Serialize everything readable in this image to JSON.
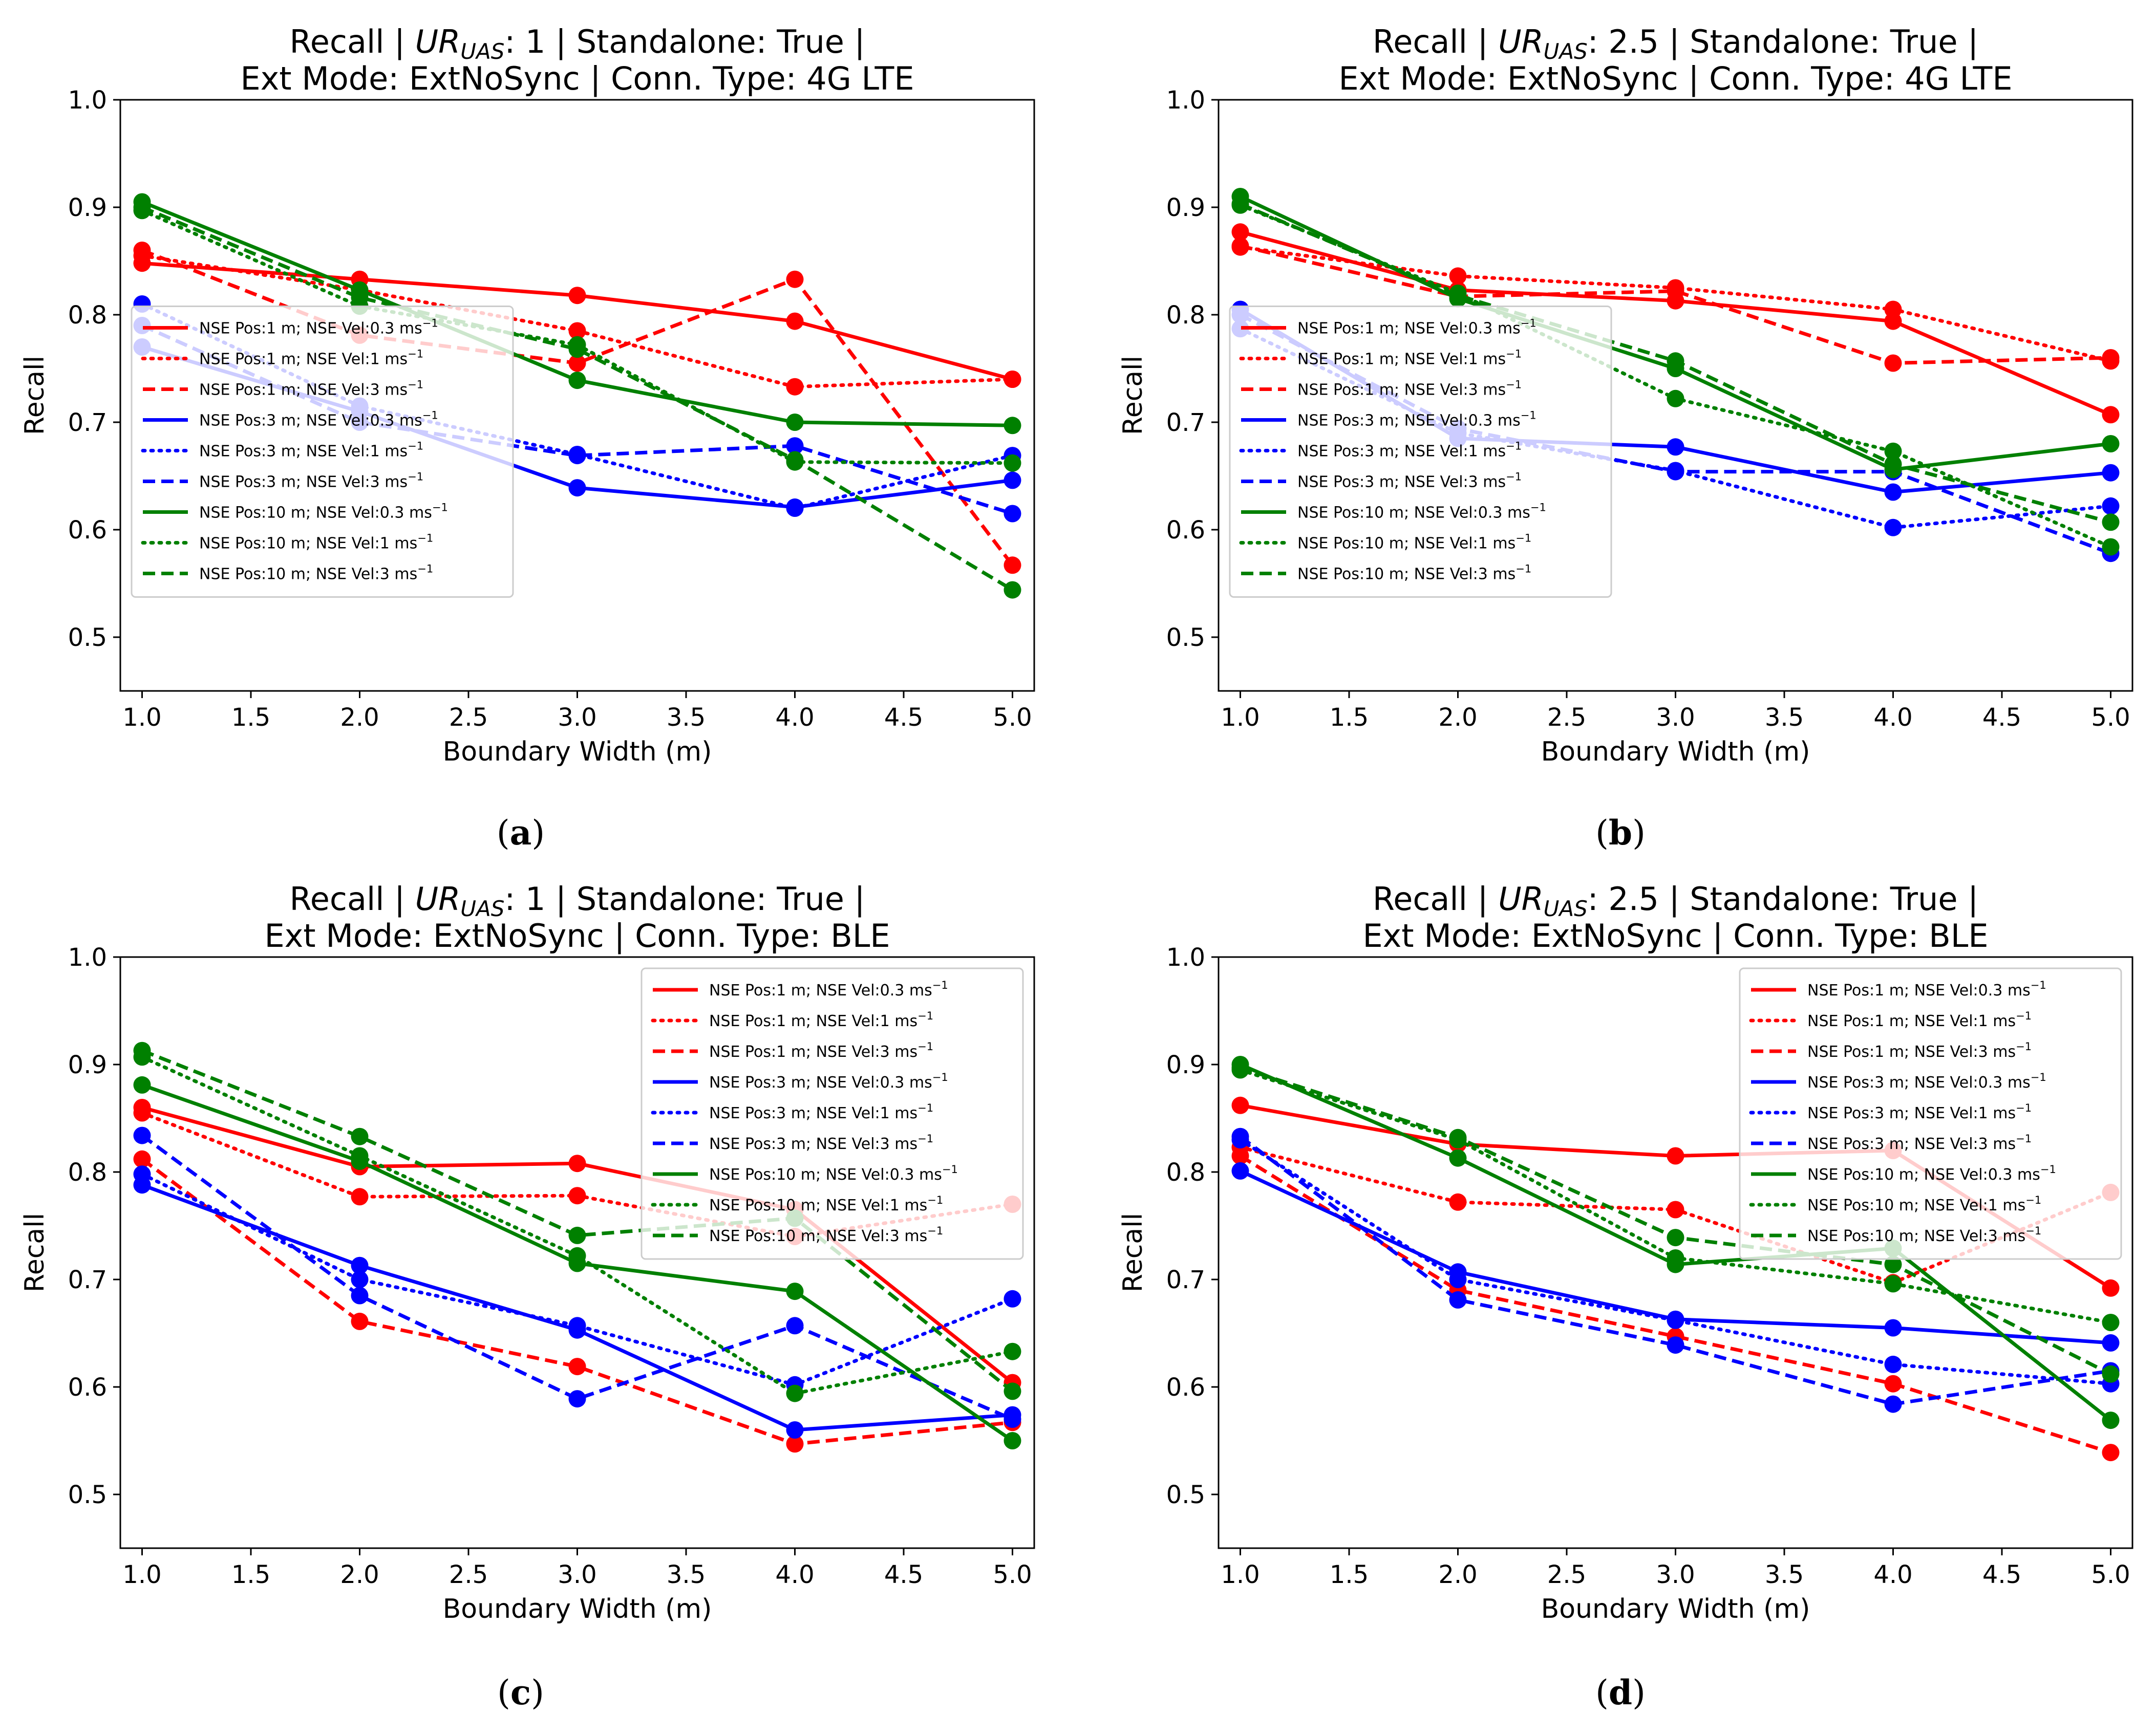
{
  "chart_data": [
    {
      "type": "line",
      "panel": "a",
      "caption": "a",
      "title_line1_parts": [
        "Recall | ",
        "UR",
        "UAS",
        ": 1 | Standalone: True |"
      ],
      "title_line2": "Ext Mode: ExtNoSync | Conn. Type: 4G LTE",
      "xlabel": "Boundary  Width (m)",
      "ylabel": "Recall",
      "xlim": [
        0.9,
        5.1
      ],
      "ylim": [
        0.45,
        1.0
      ],
      "xticks": [
        "1.0",
        "1.5",
        "2.0",
        "2.5",
        "3.0",
        "3.5",
        "4.0",
        "4.5",
        "5.0"
      ],
      "yticks": [
        "0.5",
        "0.6",
        "0.7",
        "0.8",
        "0.9",
        "1.0"
      ],
      "legend_position": "center-left",
      "x": [
        1,
        2,
        3,
        4,
        5
      ],
      "series": [
        {
          "name": "NSE Pos:1 m; NSE Vel:0.3 ms",
          "color": "#ff0000",
          "style": "solid",
          "values": [
            0.848,
            0.833,
            0.818,
            0.794,
            0.74
          ]
        },
        {
          "name": "NSE Pos:1 m; NSE Vel:1 ms",
          "color": "#ff0000",
          "style": "dotted",
          "values": [
            0.855,
            0.823,
            0.785,
            0.733,
            0.74
          ]
        },
        {
          "name": "NSE Pos:1 m; NSE Vel:3 ms",
          "color": "#ff0000",
          "style": "dashed",
          "values": [
            0.86,
            0.781,
            0.755,
            0.833,
            0.567
          ]
        },
        {
          "name": "NSE Pos:3 m; NSE Vel:0.3 ms",
          "color": "#0000ff",
          "style": "solid",
          "values": [
            0.77,
            0.71,
            0.639,
            0.621,
            0.646
          ]
        },
        {
          "name": "NSE Pos:3 m; NSE Vel:1 ms",
          "color": "#0000ff",
          "style": "dotted",
          "values": [
            0.81,
            0.715,
            0.67,
            0.62,
            0.669
          ]
        },
        {
          "name": "NSE Pos:3 m; NSE Vel:3 ms",
          "color": "#0000ff",
          "style": "dashed",
          "values": [
            0.79,
            0.7,
            0.669,
            0.678,
            0.615
          ]
        },
        {
          "name": "NSE Pos:10 m; NSE Vel:0.3 ms",
          "color": "#008000",
          "style": "solid",
          "values": [
            0.905,
            0.823,
            0.739,
            0.7,
            0.697
          ]
        },
        {
          "name": "NSE Pos:10 m; NSE Vel:1 ms",
          "color": "#008000",
          "style": "dotted",
          "values": [
            0.897,
            0.808,
            0.772,
            0.663,
            0.662
          ]
        },
        {
          "name": "NSE Pos:10 m; NSE Vel:3 ms",
          "color": "#008000",
          "style": "dashed",
          "values": [
            0.9,
            0.816,
            0.768,
            0.665,
            0.544
          ]
        }
      ]
    },
    {
      "type": "line",
      "panel": "b",
      "caption": "b",
      "title_line1_parts": [
        "Recall | ",
        "UR",
        "UAS",
        ": 2.5 | Standalone: True |"
      ],
      "title_line2": "Ext Mode: ExtNoSync | Conn. Type: 4G LTE",
      "xlabel": "Boundary  Width (m)",
      "ylabel": "Recall",
      "xlim": [
        0.9,
        5.1
      ],
      "ylim": [
        0.45,
        1.0
      ],
      "xticks": [
        "1.0",
        "1.5",
        "2.0",
        "2.5",
        "3.0",
        "3.5",
        "4.0",
        "4.5",
        "5.0"
      ],
      "yticks": [
        "0.5",
        "0.6",
        "0.7",
        "0.8",
        "0.9",
        "1.0"
      ],
      "legend_position": "center-left",
      "x": [
        1,
        2,
        3,
        4,
        5
      ],
      "series": [
        {
          "name": "NSE Pos:1 m; NSE Vel:0.3 ms",
          "color": "#ff0000",
          "style": "solid",
          "values": [
            0.877,
            0.823,
            0.813,
            0.794,
            0.707
          ]
        },
        {
          "name": "NSE Pos:1 m; NSE Vel:1 ms",
          "color": "#ff0000",
          "style": "dotted",
          "values": [
            0.863,
            0.836,
            0.825,
            0.805,
            0.757
          ]
        },
        {
          "name": "NSE Pos:1 m; NSE Vel:3 ms",
          "color": "#ff0000",
          "style": "dashed",
          "values": [
            0.864,
            0.817,
            0.822,
            0.755,
            0.76
          ]
        },
        {
          "name": "NSE Pos:3 m; NSE Vel:0.3 ms",
          "color": "#0000ff",
          "style": "solid",
          "values": [
            0.805,
            0.685,
            0.677,
            0.635,
            0.653
          ]
        },
        {
          "name": "NSE Pos:3 m; NSE Vel:1 ms",
          "color": "#0000ff",
          "style": "dotted",
          "values": [
            0.787,
            0.69,
            0.655,
            0.602,
            0.622
          ]
        },
        {
          "name": "NSE Pos:3 m; NSE Vel:3 ms",
          "color": "#0000ff",
          "style": "dashed",
          "values": [
            0.8,
            0.694,
            0.654,
            0.654,
            0.578
          ]
        },
        {
          "name": "NSE Pos:10 m; NSE Vel:0.3 ms",
          "color": "#008000",
          "style": "solid",
          "values": [
            0.91,
            0.815,
            0.75,
            0.656,
            0.68
          ]
        },
        {
          "name": "NSE Pos:10 m; NSE Vel:1 ms",
          "color": "#008000",
          "style": "dotted",
          "values": [
            0.902,
            0.82,
            0.722,
            0.673,
            0.584
          ]
        },
        {
          "name": "NSE Pos:10 m; NSE Vel:3 ms",
          "color": "#008000",
          "style": "dashed",
          "values": [
            0.903,
            0.818,
            0.757,
            0.661,
            0.607
          ]
        }
      ]
    },
    {
      "type": "line",
      "panel": "c",
      "caption": "c",
      "title_line1_parts": [
        "Recall | ",
        "UR",
        "UAS",
        ": 1 | Standalone: True |"
      ],
      "title_line2": "Ext Mode: ExtNoSync | Conn. Type: BLE",
      "xlabel": "Boundary  Width (m)",
      "ylabel": "Recall",
      "xlim": [
        0.9,
        5.1
      ],
      "ylim": [
        0.45,
        1.0
      ],
      "xticks": [
        "1.0",
        "1.5",
        "2.0",
        "2.5",
        "3.0",
        "3.5",
        "4.0",
        "4.5",
        "5.0"
      ],
      "yticks": [
        "0.5",
        "0.6",
        "0.7",
        "0.8",
        "0.9",
        "1.0"
      ],
      "legend_position": "upper-right",
      "x": [
        1,
        2,
        3,
        4,
        5
      ],
      "series": [
        {
          "name": "NSE Pos:1 m; NSE Vel:0.3 ms",
          "color": "#ff0000",
          "style": "solid",
          "values": [
            0.86,
            0.805,
            0.808,
            0.765,
            0.604
          ]
        },
        {
          "name": "NSE Pos:1 m; NSE Vel:1 ms",
          "color": "#ff0000",
          "style": "dotted",
          "values": [
            0.855,
            0.777,
            0.778,
            0.74,
            0.77
          ]
        },
        {
          "name": "NSE Pos:1 m; NSE Vel:3 ms",
          "color": "#ff0000",
          "style": "dashed",
          "values": [
            0.812,
            0.661,
            0.619,
            0.547,
            0.567
          ]
        },
        {
          "name": "NSE Pos:3 m; NSE Vel:0.3 ms",
          "color": "#0000ff",
          "style": "solid",
          "values": [
            0.788,
            0.713,
            0.653,
            0.56,
            0.574
          ]
        },
        {
          "name": "NSE Pos:3 m; NSE Vel:1 ms",
          "color": "#0000ff",
          "style": "dotted",
          "values": [
            0.798,
            0.7,
            0.657,
            0.602,
            0.682
          ]
        },
        {
          "name": "NSE Pos:3 m; NSE Vel:3 ms",
          "color": "#0000ff",
          "style": "dashed",
          "values": [
            0.834,
            0.685,
            0.589,
            0.657,
            0.57
          ]
        },
        {
          "name": "NSE Pos:10 m; NSE Vel:0.3 ms",
          "color": "#008000",
          "style": "solid",
          "values": [
            0.881,
            0.81,
            0.715,
            0.689,
            0.55
          ]
        },
        {
          "name": "NSE Pos:10 m; NSE Vel:1 ms",
          "color": "#008000",
          "style": "dotted",
          "values": [
            0.907,
            0.815,
            0.722,
            0.594,
            0.633
          ]
        },
        {
          "name": "NSE Pos:10 m; NSE Vel:3 ms",
          "color": "#008000",
          "style": "dashed",
          "values": [
            0.913,
            0.833,
            0.741,
            0.757,
            0.596
          ]
        }
      ]
    },
    {
      "type": "line",
      "panel": "d",
      "caption": "d",
      "title_line1_parts": [
        "Recall | ",
        "UR",
        "UAS",
        ": 2.5 | Standalone: True |"
      ],
      "title_line2": "Ext Mode: ExtNoSync | Conn. Type: BLE",
      "xlabel": "Boundary  Width (m)",
      "ylabel": "Recall",
      "xlim": [
        0.9,
        5.1
      ],
      "ylim": [
        0.45,
        1.0
      ],
      "xticks": [
        "1.0",
        "1.5",
        "2.0",
        "2.5",
        "3.0",
        "3.5",
        "4.0",
        "4.5",
        "5.0"
      ],
      "yticks": [
        "0.5",
        "0.6",
        "0.7",
        "0.8",
        "0.9",
        "1.0"
      ],
      "legend_position": "upper-right",
      "x": [
        1,
        2,
        3,
        4,
        5
      ],
      "series": [
        {
          "name": "NSE Pos:1 m; NSE Vel:0.3 ms",
          "color": "#ff0000",
          "style": "solid",
          "values": [
            0.862,
            0.826,
            0.815,
            0.82,
            0.692
          ]
        },
        {
          "name": "NSE Pos:1 m; NSE Vel:1 ms",
          "color": "#ff0000",
          "style": "dotted",
          "values": [
            0.823,
            0.772,
            0.765,
            0.697,
            0.781
          ]
        },
        {
          "name": "NSE Pos:1 m; NSE Vel:3 ms",
          "color": "#ff0000",
          "style": "dashed",
          "values": [
            0.815,
            0.69,
            0.647,
            0.603,
            0.539
          ]
        },
        {
          "name": "NSE Pos:3 m; NSE Vel:0.3 ms",
          "color": "#0000ff",
          "style": "solid",
          "values": [
            0.801,
            0.707,
            0.663,
            0.655,
            0.641
          ]
        },
        {
          "name": "NSE Pos:3 m; NSE Vel:1 ms",
          "color": "#0000ff",
          "style": "dotted",
          "values": [
            0.83,
            0.7,
            0.662,
            0.621,
            0.603
          ]
        },
        {
          "name": "NSE Pos:3 m; NSE Vel:3 ms",
          "color": "#0000ff",
          "style": "dashed",
          "values": [
            0.833,
            0.681,
            0.639,
            0.584,
            0.615
          ]
        },
        {
          "name": "NSE Pos:10 m; NSE Vel:0.3 ms",
          "color": "#008000",
          "style": "solid",
          "values": [
            0.9,
            0.813,
            0.714,
            0.729,
            0.569
          ]
        },
        {
          "name": "NSE Pos:10 m; NSE Vel:1 ms",
          "color": "#008000",
          "style": "dotted",
          "values": [
            0.895,
            0.83,
            0.72,
            0.696,
            0.66
          ]
        },
        {
          "name": "NSE Pos:10 m; NSE Vel:3 ms",
          "color": "#008000",
          "style": "dashed",
          "values": [
            0.897,
            0.832,
            0.739,
            0.714,
            0.612
          ]
        }
      ]
    }
  ],
  "legend_unit_superscript": "−1"
}
